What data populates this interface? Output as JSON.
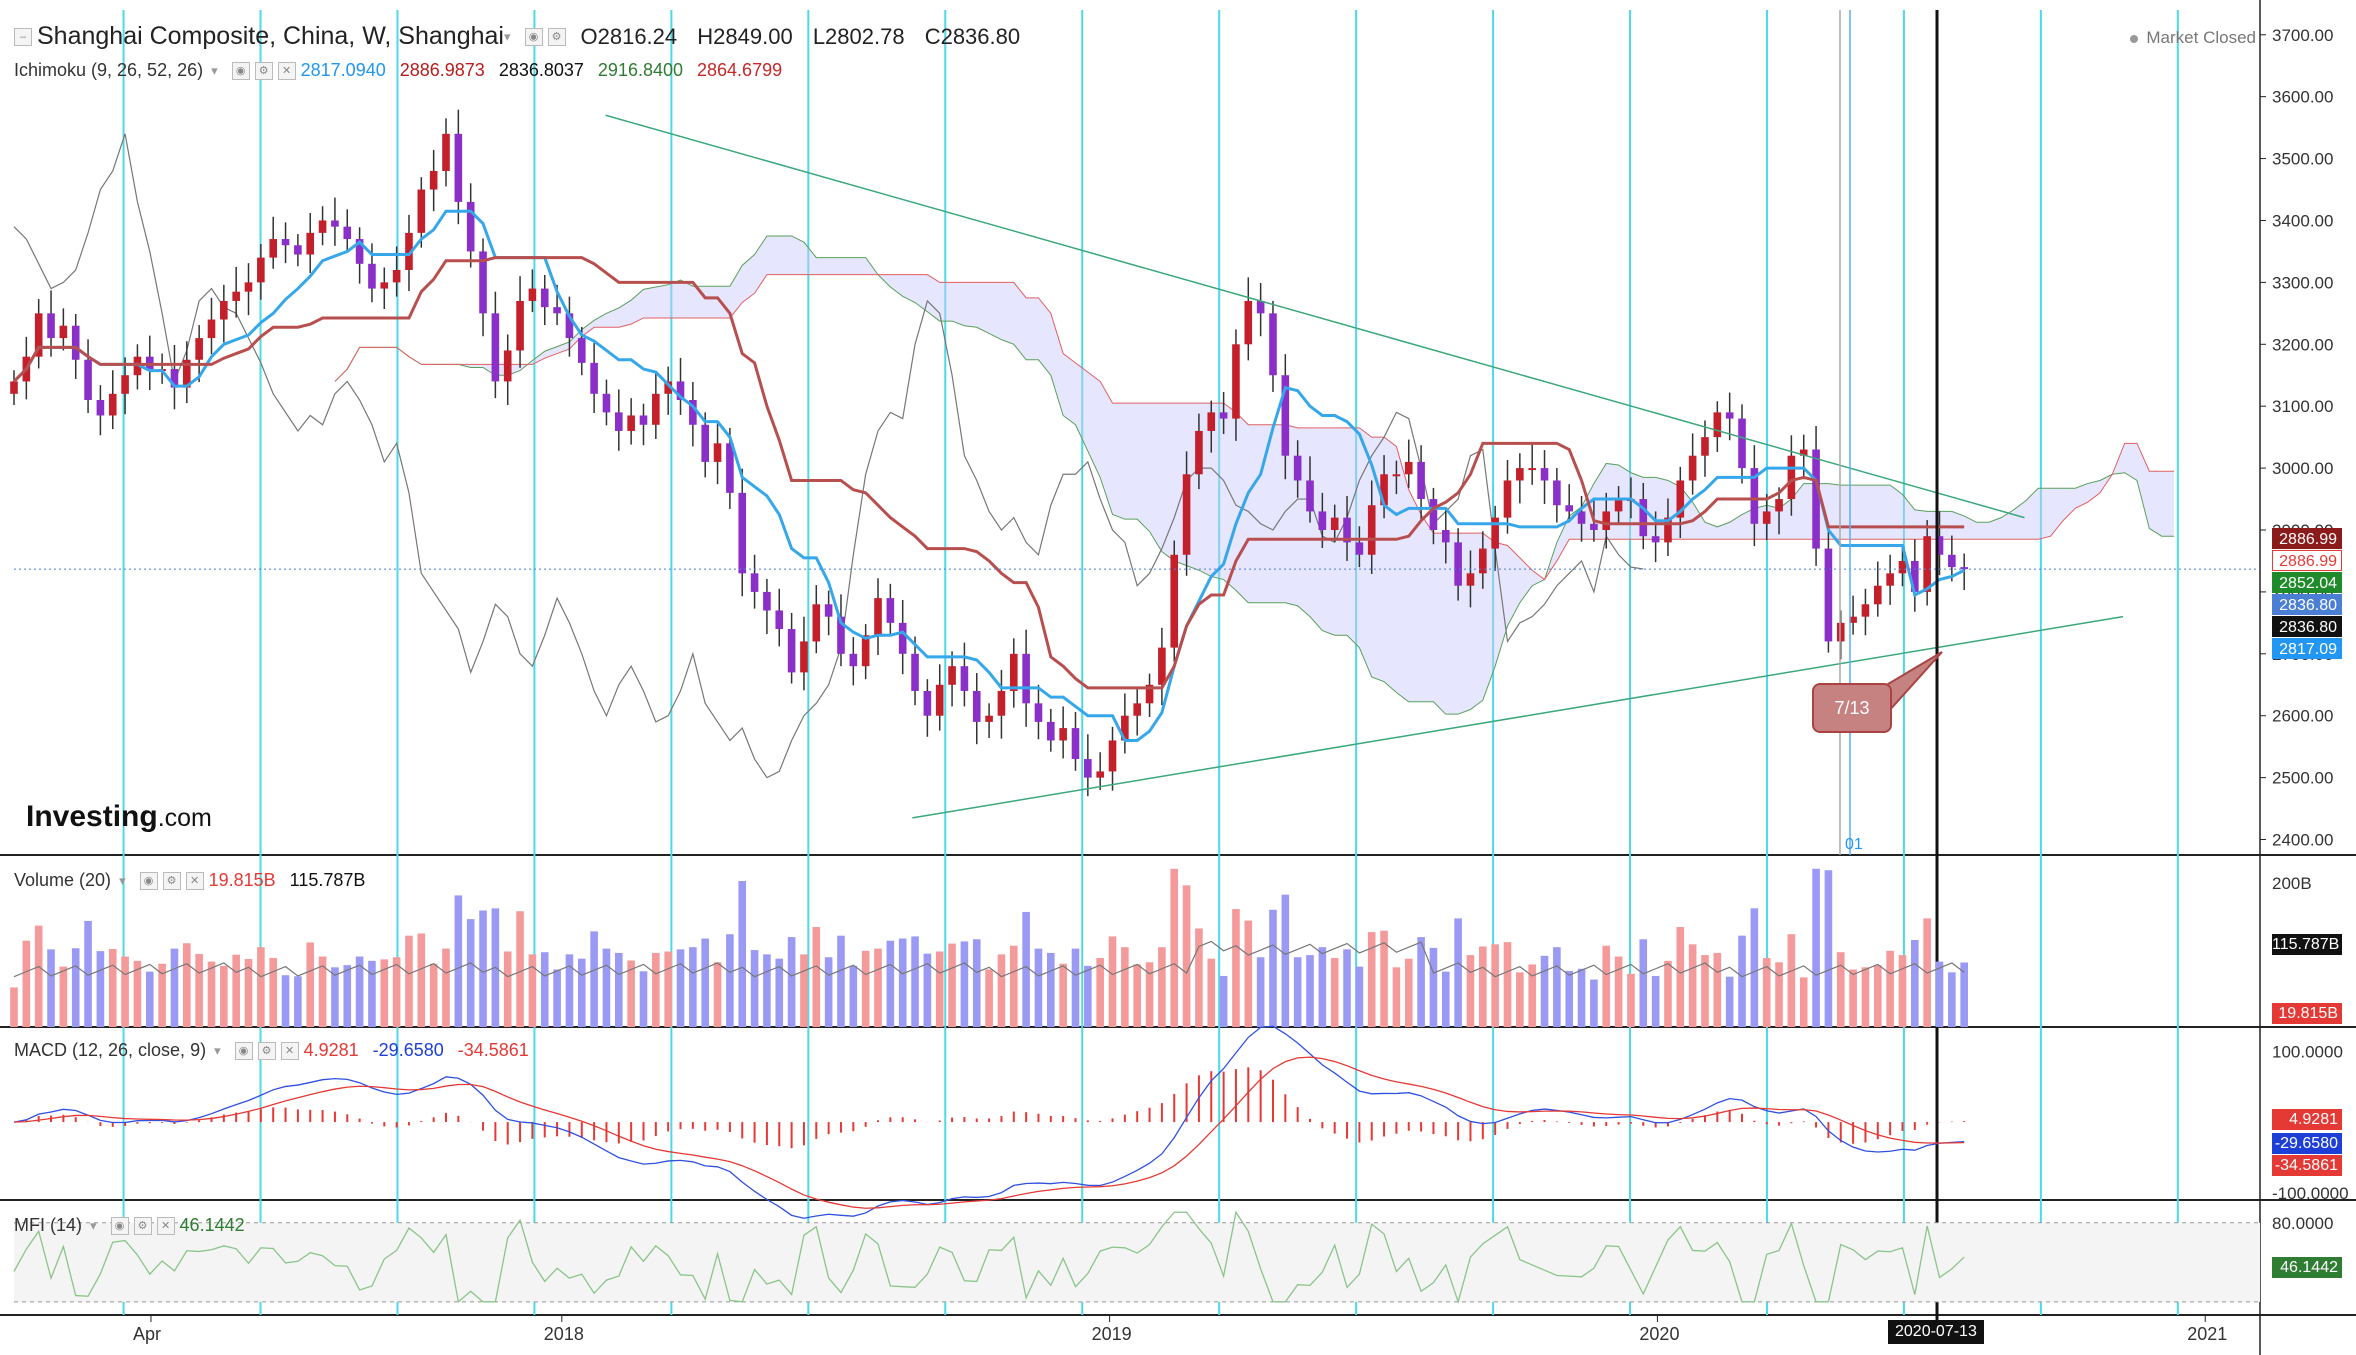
{
  "header": {
    "symbol": "Shanghai Composite, China, W, Shanghai",
    "open": "O2816.24",
    "high": "H2849.00",
    "low": "L2802.78",
    "close": "C2836.80",
    "market_status": "Market Closed"
  },
  "ichimoku": {
    "label": "Ichimoku (9, 26, 52, 26)",
    "values": [
      "2817.0940",
      "2886.9873",
      "2836.8037",
      "2916.8400",
      "2864.6799"
    ],
    "colors": [
      "#2196f3",
      "#b71c1c",
      "#111111",
      "#2e7d32",
      "#c62828"
    ]
  },
  "volume": {
    "label": "Volume (20)",
    "values": [
      "19.815B",
      "115.787B"
    ],
    "colors": [
      "#e53935",
      "#111111"
    ]
  },
  "macd": {
    "label": "MACD (12, 26, close, 9)",
    "values": [
      "4.9281",
      "-29.6580",
      "-34.5861"
    ],
    "colors": [
      "#e53935",
      "#1e3fd6",
      "#e53935"
    ]
  },
  "mfi": {
    "label": "MFI (14)",
    "values": [
      "46.1442"
    ],
    "colors": [
      "#2e7d32"
    ]
  },
  "branding": {
    "logo": "Investing",
    "logo_suffix": ".com"
  },
  "annotation": {
    "callout": "7/13",
    "date_label": "2020-07-13",
    "marker": "01"
  },
  "price_labels": [
    {
      "text": "2886.99",
      "bg": "#8b1a1a",
      "fg": "#ffffff"
    },
    {
      "text": "2886.99",
      "bg": "#ffffff",
      "fg": "#e53935"
    },
    {
      "text": "2852.04",
      "bg": "#1f8a2a",
      "fg": "#ffffff"
    },
    {
      "text": "2836.80",
      "bg": "#4b7fd6",
      "fg": "#ffffff"
    },
    {
      "text": "2836.80",
      "bg": "#111111",
      "fg": "#ffffff"
    },
    {
      "text": "2817.09",
      "bg": "#2196f3",
      "fg": "#ffffff"
    }
  ],
  "pane_labels": [
    {
      "text": "115.787B",
      "bg": "#111111",
      "fg": "#ffffff"
    },
    {
      "text": "19.815B",
      "bg": "#e53935",
      "fg": "#ffffff"
    },
    {
      "text": "4.9281",
      "bg": "#e53935",
      "fg": "#ffffff"
    },
    {
      "text": "-29.6580",
      "bg": "#1e3fd6",
      "fg": "#ffffff"
    },
    {
      "text": "-34.5861",
      "bg": "#e53935",
      "fg": "#ffffff"
    },
    {
      "text": "46.1442",
      "bg": "#2e7d32",
      "fg": "#ffffff"
    }
  ],
  "chart_data": {
    "type": "candlestick",
    "price_axis": {
      "ticks": [
        2400,
        2500,
        2600,
        2700,
        2800,
        2900,
        3000,
        3100,
        3200,
        3300,
        3400,
        3500,
        3600,
        3700
      ],
      "tick_labels": [
        "2400.00",
        "2500.00",
        "2600.00",
        "2700.00",
        "2800.00",
        "2900.00",
        "3000.00",
        "3100.00",
        "3200.00",
        "3300.00",
        "3400.00",
        "3500.00",
        "3600.00",
        "3700.00"
      ],
      "range": [
        2375,
        3740
      ]
    },
    "time_axis": {
      "labels": [
        "Apr",
        "2018",
        "2019",
        "2020",
        "2021"
      ],
      "label_dates": [
        2017.25,
        2018.0,
        2019.0,
        2020.0,
        2021.0
      ],
      "range": [
        2017.0,
        2021.1
      ]
    },
    "volume_axis": {
      "ticks": [
        200
      ],
      "tick_labels": [
        "200B"
      ],
      "range": [
        0,
        235
      ]
    },
    "macd_axis": {
      "ticks": [
        100,
        -100
      ],
      "tick_labels": [
        "100.0000",
        "-100.0000"
      ],
      "range": [
        -110,
        130
      ]
    },
    "mfi_axis": {
      "ticks": [
        80
      ],
      "tick_labels": [
        "80.0000"
      ],
      "range": [
        10,
        95
      ]
    },
    "trendlines": [
      {
        "from": [
          2018.08,
          3570
        ],
        "to": [
          2020.67,
          2920
        ]
      },
      {
        "from": [
          2018.64,
          2435
        ],
        "to": [
          2020.85,
          2760
        ]
      }
    ],
    "weekly_closes": [
      3140,
      3180,
      3250,
      3210,
      3230,
      3175,
      3110,
      3085,
      3120,
      3150,
      3180,
      3160,
      3160,
      3130,
      3175,
      3210,
      3240,
      3270,
      3285,
      3300,
      3340,
      3370,
      3360,
      3345,
      3380,
      3400,
      3390,
      3370,
      3330,
      3290,
      3300,
      3320,
      3380,
      3450,
      3480,
      3540,
      3430,
      3350,
      3250,
      3140,
      3190,
      3270,
      3290,
      3260,
      3250,
      3210,
      3170,
      3120,
      3090,
      3060,
      3085,
      3070,
      3120,
      3140,
      3110,
      3070,
      3010,
      3040,
      2960,
      2830,
      2800,
      2770,
      2740,
      2670,
      2720,
      2780,
      2760,
      2700,
      2680,
      2730,
      2790,
      2750,
      2700,
      2640,
      2600,
      2650,
      2680,
      2640,
      2590,
      2600,
      2640,
      2700,
      2620,
      2590,
      2560,
      2580,
      2530,
      2500,
      2510,
      2560,
      2600,
      2620,
      2650,
      2710,
      2860,
      2990,
      3060,
      3090,
      3080,
      3200,
      3270,
      3250,
      3150,
      3020,
      2980,
      2930,
      2900,
      2920,
      2880,
      2860,
      2940,
      2990,
      2990,
      3010,
      2950,
      2900,
      2880,
      2810,
      2830,
      2870,
      2920,
      2980,
      3000,
      3000,
      2980,
      2940,
      2930,
      2910,
      2900,
      2930,
      2950,
      2950,
      2890,
      2880,
      2920,
      2980,
      3020,
      3050,
      3090,
      3080,
      3000,
      2910,
      2930,
      2950,
      3020,
      3030,
      2870,
      2720,
      2750,
      2760,
      2780,
      2810,
      2830,
      2850,
      2800,
      2890,
      2860,
      2840,
      2837
    ]
  }
}
